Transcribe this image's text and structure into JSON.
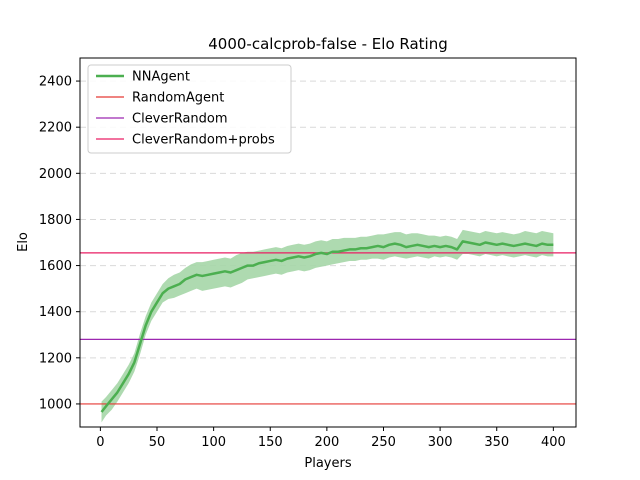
{
  "chart_data": {
    "type": "line",
    "title": "4000-calcprob-false - Elo Rating",
    "xlabel": "Players",
    "ylabel": "Elo",
    "xlim": [
      -18,
      420
    ],
    "ylim": [
      900,
      2500
    ],
    "xticks": [
      0,
      50,
      100,
      150,
      200,
      250,
      300,
      350,
      400
    ],
    "yticks": [
      1000,
      1200,
      1400,
      1600,
      1800,
      2000,
      2200,
      2400
    ],
    "grid": "y-dashed",
    "legend_position": "top-left",
    "series": [
      {
        "name": "NNAgent",
        "kind": "line-with-band",
        "color": "#4caf50",
        "band_color": "#a5d6a7",
        "x": [
          1,
          5,
          10,
          15,
          20,
          25,
          30,
          35,
          40,
          45,
          50,
          55,
          60,
          65,
          70,
          75,
          80,
          85,
          90,
          95,
          100,
          105,
          110,
          115,
          120,
          125,
          130,
          135,
          140,
          145,
          150,
          155,
          160,
          165,
          170,
          175,
          180,
          185,
          190,
          195,
          200,
          205,
          210,
          215,
          220,
          225,
          230,
          235,
          240,
          245,
          250,
          255,
          260,
          265,
          270,
          275,
          280,
          285,
          290,
          295,
          300,
          305,
          310,
          315,
          320,
          325,
          330,
          335,
          340,
          345,
          350,
          355,
          360,
          365,
          370,
          375,
          380,
          385,
          390,
          395,
          400
        ],
        "y": [
          965,
          990,
          1020,
          1050,
          1090,
          1130,
          1180,
          1260,
          1340,
          1400,
          1440,
          1480,
          1500,
          1510,
          1520,
          1540,
          1550,
          1560,
          1555,
          1560,
          1565,
          1570,
          1575,
          1570,
          1580,
          1590,
          1600,
          1600,
          1610,
          1615,
          1620,
          1625,
          1620,
          1630,
          1635,
          1640,
          1635,
          1640,
          1650,
          1655,
          1650,
          1660,
          1660,
          1665,
          1670,
          1670,
          1675,
          1675,
          1680,
          1685,
          1680,
          1690,
          1695,
          1690,
          1680,
          1685,
          1690,
          1685,
          1680,
          1685,
          1680,
          1685,
          1680,
          1670,
          1705,
          1700,
          1695,
          1690,
          1700,
          1695,
          1690,
          1695,
          1690,
          1685,
          1690,
          1695,
          1690,
          1685,
          1695,
          1690,
          1690
        ],
        "lower": [
          920,
          950,
          975,
          1010,
          1050,
          1090,
          1140,
          1215,
          1300,
          1360,
          1400,
          1440,
          1455,
          1460,
          1470,
          1480,
          1490,
          1500,
          1490,
          1495,
          1500,
          1505,
          1510,
          1505,
          1515,
          1525,
          1540,
          1545,
          1550,
          1555,
          1560,
          1565,
          1560,
          1570,
          1575,
          1580,
          1575,
          1580,
          1590,
          1595,
          1600,
          1605,
          1610,
          1615,
          1620,
          1620,
          1625,
          1625,
          1630,
          1630,
          1625,
          1635,
          1640,
          1635,
          1630,
          1635,
          1640,
          1635,
          1630,
          1640,
          1635,
          1640,
          1635,
          1625,
          1650,
          1650,
          1645,
          1640,
          1650,
          1645,
          1640,
          1645,
          1640,
          1635,
          1640,
          1645,
          1640,
          1635,
          1645,
          1640,
          1640
        ],
        "upper": [
          1010,
          1030,
          1060,
          1090,
          1130,
          1170,
          1220,
          1305,
          1380,
          1440,
          1480,
          1520,
          1545,
          1560,
          1570,
          1590,
          1605,
          1615,
          1615,
          1620,
          1625,
          1630,
          1635,
          1630,
          1645,
          1655,
          1660,
          1660,
          1665,
          1670,
          1675,
          1680,
          1675,
          1685,
          1690,
          1695,
          1690,
          1695,
          1705,
          1710,
          1705,
          1715,
          1715,
          1720,
          1720,
          1720,
          1725,
          1725,
          1730,
          1735,
          1735,
          1740,
          1745,
          1745,
          1735,
          1740,
          1740,
          1735,
          1730,
          1730,
          1725,
          1730,
          1725,
          1715,
          1755,
          1750,
          1745,
          1740,
          1750,
          1745,
          1740,
          1745,
          1740,
          1735,
          1740,
          1750,
          1745,
          1740,
          1750,
          1745,
          1740
        ]
      },
      {
        "name": "RandomAgent",
        "kind": "hline",
        "color": "#e53935",
        "y": 1000
      },
      {
        "name": "CleverRandom",
        "kind": "hline",
        "color": "#9c27b0",
        "y": 1280
      },
      {
        "name": "CleverRandom+probs",
        "kind": "hline",
        "color": "#e91e63",
        "y": 1655
      }
    ]
  }
}
